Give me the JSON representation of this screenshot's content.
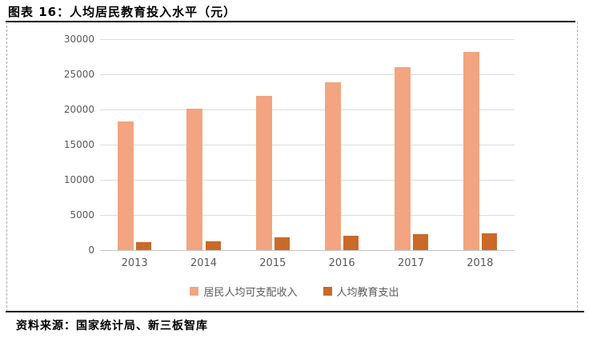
{
  "header": {
    "title": "图表 16：人均居民教育投入水平（元）"
  },
  "footer": {
    "source": "资料来源：国家统计局、新三板智库"
  },
  "chart_data": {
    "type": "bar",
    "title": "人均居民教育投入水平（元）",
    "categories": [
      "2013",
      "2014",
      "2015",
      "2016",
      "2017",
      "2018"
    ],
    "series": [
      {
        "name": "居民人均可支配收入",
        "color": "#F2A580",
        "values": [
          18311,
          20167,
          21966,
          23821,
          25974,
          28228
        ]
      },
      {
        "name": "人均教育支出",
        "color": "#C96A29",
        "values": [
          1100,
          1300,
          1800,
          2050,
          2250,
          2350
        ]
      }
    ],
    "ylim": [
      0,
      30000
    ],
    "yticks": [
      0,
      5000,
      10000,
      15000,
      20000,
      25000,
      30000
    ],
    "grid": true,
    "legend_position": "bottom",
    "axis_label_color": "#595959",
    "gridline_color": "#DCDCDC"
  }
}
